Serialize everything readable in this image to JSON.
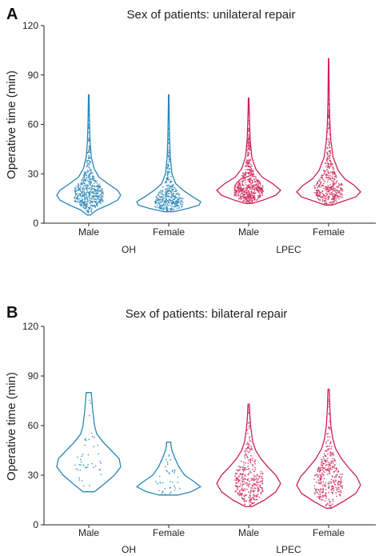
{
  "colors": {
    "OH": "#2a86b8",
    "LPEC": "#cc2155",
    "axis": "#222222"
  },
  "chart_data": [
    {
      "type": "violin",
      "panel": "A",
      "title": "Sex of patients: unilateral repair",
      "ylabel": "Operative time (min)",
      "ylim": [
        0,
        120
      ],
      "yticks": [
        "0",
        "30",
        "60",
        "90",
        "120"
      ],
      "categories": [
        "Male",
        "Female",
        "Male",
        "Female"
      ],
      "groups": [
        "OH",
        "LPEC"
      ],
      "series": [
        {
          "group": "OH",
          "category": "Male",
          "min": 5,
          "max": 78,
          "median": 18,
          "profile": [
            [
              5,
              0.05
            ],
            [
              8,
              0.25
            ],
            [
              11,
              0.6
            ],
            [
              14,
              0.9
            ],
            [
              17,
              1.0
            ],
            [
              20,
              0.9
            ],
            [
              24,
              0.6
            ],
            [
              28,
              0.32
            ],
            [
              33,
              0.17
            ],
            [
              40,
              0.08
            ],
            [
              50,
              0.04
            ],
            [
              60,
              0.025
            ],
            [
              70,
              0.015
            ],
            [
              78,
              0.01
            ]
          ]
        },
        {
          "group": "OH",
          "category": "Female",
          "min": 7,
          "max": 78,
          "median": 13,
          "profile": [
            [
              7,
              0.15
            ],
            [
              9,
              0.6
            ],
            [
              11,
              0.95
            ],
            [
              13,
              1.0
            ],
            [
              16,
              0.75
            ],
            [
              20,
              0.45
            ],
            [
              24,
              0.22
            ],
            [
              30,
              0.1
            ],
            [
              40,
              0.05
            ],
            [
              50,
              0.03
            ],
            [
              60,
              0.02
            ],
            [
              70,
              0.012
            ],
            [
              78,
              0.008
            ]
          ]
        },
        {
          "group": "LPEC",
          "category": "Male",
          "min": 12,
          "max": 76,
          "median": 20,
          "profile": [
            [
              12,
              0.1
            ],
            [
              14,
              0.45
            ],
            [
              17,
              0.85
            ],
            [
              20,
              1.0
            ],
            [
              24,
              0.75
            ],
            [
              28,
              0.42
            ],
            [
              33,
              0.22
            ],
            [
              40,
              0.1
            ],
            [
              50,
              0.05
            ],
            [
              60,
              0.03
            ],
            [
              70,
              0.015
            ],
            [
              76,
              0.01
            ]
          ]
        },
        {
          "group": "LPEC",
          "category": "Female",
          "min": 11,
          "max": 100,
          "median": 18,
          "profile": [
            [
              11,
              0.1
            ],
            [
              13,
              0.4
            ],
            [
              16,
              0.85
            ],
            [
              19,
              1.0
            ],
            [
              23,
              0.8
            ],
            [
              27,
              0.5
            ],
            [
              32,
              0.3
            ],
            [
              40,
              0.14
            ],
            [
              50,
              0.07
            ],
            [
              60,
              0.04
            ],
            [
              75,
              0.02
            ],
            [
              90,
              0.012
            ],
            [
              100,
              0.006
            ]
          ]
        }
      ]
    },
    {
      "type": "violin",
      "panel": "B",
      "title": "Sex of patients: bilateral repair",
      "ylabel": "Operative time (min)",
      "ylim": [
        0,
        120
      ],
      "yticks": [
        "0",
        "30",
        "60",
        "90",
        "120"
      ],
      "categories": [
        "Male",
        "Female",
        "Male",
        "Female"
      ],
      "groups": [
        "OH",
        "LPEC"
      ],
      "series": [
        {
          "group": "OH",
          "category": "Male",
          "min": 20,
          "max": 80,
          "median": 38,
          "profile": [
            [
              20,
              0.18
            ],
            [
              25,
              0.5
            ],
            [
              30,
              0.8
            ],
            [
              35,
              1.0
            ],
            [
              40,
              0.95
            ],
            [
              45,
              0.7
            ],
            [
              50,
              0.45
            ],
            [
              55,
              0.25
            ],
            [
              60,
              0.18
            ],
            [
              65,
              0.15
            ],
            [
              70,
              0.12
            ],
            [
              75,
              0.1
            ],
            [
              80,
              0.08
            ]
          ]
        },
        {
          "group": "OH",
          "category": "Female",
          "min": 18,
          "max": 50,
          "median": 24,
          "profile": [
            [
              18,
              0.3
            ],
            [
              20,
              0.7
            ],
            [
              23,
              1.0
            ],
            [
              26,
              0.8
            ],
            [
              30,
              0.5
            ],
            [
              35,
              0.32
            ],
            [
              40,
              0.2
            ],
            [
              45,
              0.1
            ],
            [
              48,
              0.07
            ],
            [
              50,
              0.07
            ]
          ]
        },
        {
          "group": "LPEC",
          "category": "Male",
          "min": 11,
          "max": 73,
          "median": 26,
          "profile": [
            [
              11,
              0.1
            ],
            [
              15,
              0.5
            ],
            [
              20,
              0.85
            ],
            [
              25,
              1.0
            ],
            [
              30,
              0.85
            ],
            [
              35,
              0.6
            ],
            [
              40,
              0.38
            ],
            [
              45,
              0.22
            ],
            [
              50,
              0.13
            ],
            [
              58,
              0.07
            ],
            [
              65,
              0.04
            ],
            [
              73,
              0.02
            ]
          ]
        },
        {
          "group": "LPEC",
          "category": "Female",
          "min": 10,
          "max": 82,
          "median": 26,
          "profile": [
            [
              10,
              0.08
            ],
            [
              14,
              0.45
            ],
            [
              19,
              0.85
            ],
            [
              24,
              1.0
            ],
            [
              29,
              0.88
            ],
            [
              34,
              0.65
            ],
            [
              40,
              0.4
            ],
            [
              46,
              0.22
            ],
            [
              52,
              0.13
            ],
            [
              60,
              0.07
            ],
            [
              70,
              0.04
            ],
            [
              82,
              0.02
            ]
          ]
        }
      ]
    }
  ]
}
